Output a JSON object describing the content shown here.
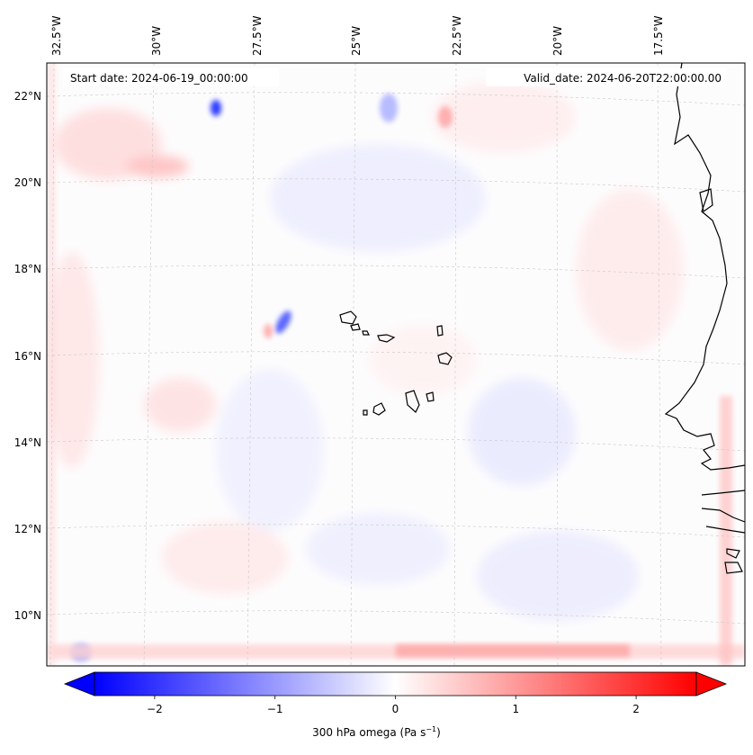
{
  "map": {
    "start_date_label": "Start date: 2024-06-19_00:00:00",
    "valid_date_label": "Valid_date: 2024-06-20T22:00:00.00",
    "lon_ticks": [
      "32.5°W",
      "30°W",
      "27.5°W",
      "25°W",
      "22.5°W",
      "20°W",
      "17.5°W"
    ],
    "lat_ticks": [
      "22°N",
      "20°N",
      "18°N",
      "16°N",
      "14°N",
      "12°N",
      "10°N"
    ],
    "field": "300 hPa omega",
    "colormap": "bwr",
    "colors": {
      "negative": "#0000ff",
      "zero": "#ffffff",
      "positive": "#ff0000",
      "coast": "#000000"
    },
    "gridlines": true
  },
  "colorbar": {
    "range": [
      -2.5,
      2.5
    ],
    "extend": "both",
    "ticks": [
      "−2",
      "−1",
      "0",
      "1",
      "2"
    ],
    "tick_values": [
      -2,
      -1,
      0,
      1,
      2
    ],
    "label_prefix": "300 hPa omega (Pa s",
    "label_exp": "−1",
    "label_suffix": ")"
  }
}
